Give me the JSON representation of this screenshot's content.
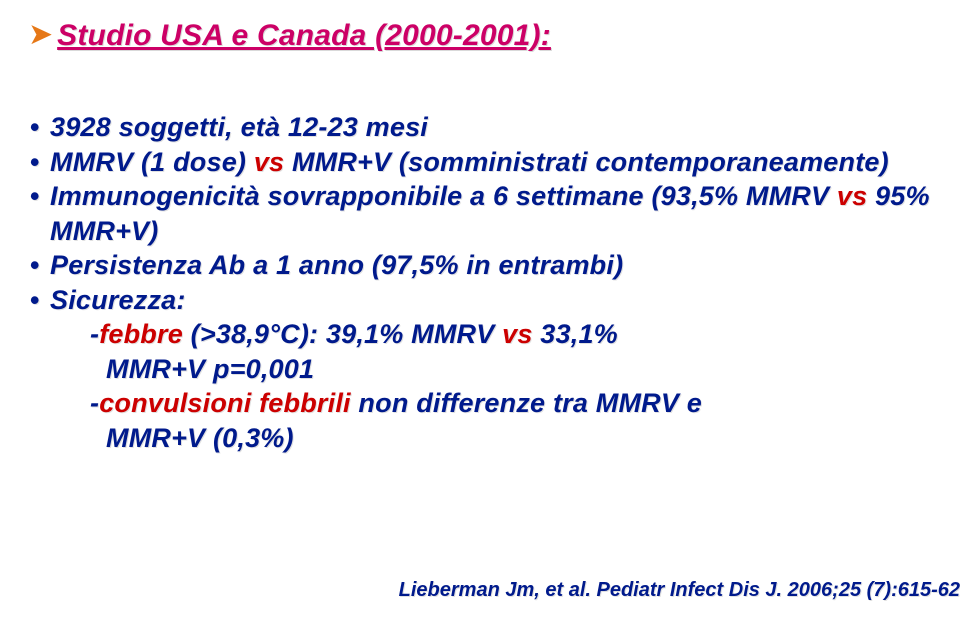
{
  "colors": {
    "chevron": "#e67817",
    "title": "#cc0066",
    "bullet_text": "#001a8c",
    "bullet_marker": "#001a8c",
    "accent_red": "#cc0000",
    "citation": "#001a8c",
    "background": "#ffffff"
  },
  "title": "Studio USA e Canada (2000-2001):",
  "bullets": [
    {
      "text": "3928 soggetti, età 12-23 mesi"
    },
    {
      "text_a": "MMRV (1 dose) ",
      "text_accent": "vs",
      "text_b": " MMR+V (somministrati contemporaneamente)"
    },
    {
      "text_a": "Immunogenicità sovrapponibile a 6 settimane (93,5% MMRV ",
      "text_accent": "vs",
      "text_b": " 95% MMR+V)"
    },
    {
      "text": "Persistenza Ab a 1 anno (97,5% in entrambi)"
    },
    {
      "text": "Sicurezza:",
      "sub": [
        {
          "prefix": "-",
          "accent": "febbre",
          "rest_a": " (>38,9°C): 39,1% MMRV ",
          "vs": "vs",
          "rest_b": " 33,1%",
          "line2": "MMR+V p=0,001"
        },
        {
          "prefix": "-",
          "accent": "convulsioni febbrili",
          "rest_a": " non differenze tra MMRV e",
          "line2": "MMR+V (0,3%)"
        }
      ]
    }
  ],
  "citation": {
    "author": "Lieberman Jm, et al.",
    "journal": " Pediatr Infect Dis J.",
    "rest": " 2006;25 (7):615-62"
  }
}
